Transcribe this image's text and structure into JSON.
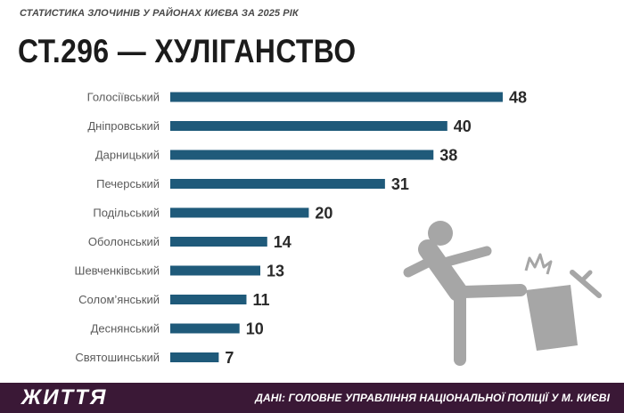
{
  "header": {
    "subtitle": "СТАТИСТИКА ЗЛОЧИНІВ У РАЙОНАХ КИЄВА ЗА 2025 РІК",
    "title": "СТ.296 — ХУЛІГАНСТВО"
  },
  "chart_data": {
    "type": "bar",
    "orientation": "horizontal",
    "categories": [
      "Голосіївський",
      "Дніпровський",
      "Дарницький",
      "Печерський",
      "Подільський",
      "Оболонський",
      "Шевченківський",
      "Солом’янський",
      "Деснянський",
      "Святошинський"
    ],
    "values": [
      48,
      40,
      38,
      31,
      20,
      14,
      13,
      11,
      10,
      7
    ],
    "bar_color": "#1f5a7a",
    "data_labels": true,
    "grid": false
  },
  "illustration": {
    "icon": "person-kicking-trash-can-icon",
    "color": "#a6a6a6"
  },
  "footer": {
    "logo": "ЖИТТЯ",
    "source": "ДАНІ: ГОЛОВНЕ УПРАВЛІННЯ НАЦІОНАЛЬНОЇ ПОЛІЦІЇ У М. КИЄВІ",
    "background": "#3a1836"
  }
}
